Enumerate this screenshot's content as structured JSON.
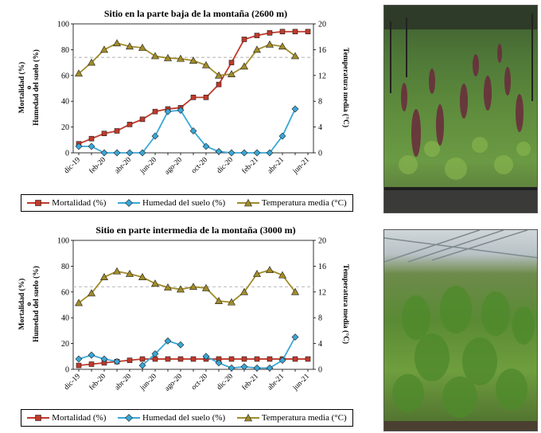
{
  "legend": {
    "mortality": "Mortalidad (%)",
    "humidity": "Humedad del suelo (%)",
    "temperature": "Temperatura media (°C)"
  },
  "colors": {
    "mortality": "#c0392b",
    "humidity": "#3aa7d6",
    "temperature": "#a08c2a",
    "reference_line": "#bfbfbf",
    "marker_edge": "#222222"
  },
  "icons": {
    "photo_top": "greenhouse-plants-photo",
    "photo_bottom": "greenhouse-seedlings-photo"
  },
  "chart_data": [
    {
      "type": "line",
      "title": "Sitio en la parte baja de la montaña (2600 m)",
      "ylabel_left_1": "Mortalidad (%)",
      "ylabel_left_sep": "o",
      "ylabel_left_2": "Humedad del suelo (%)",
      "ylabel_right": "Temperatura media (°C)",
      "xlabel": "",
      "x": [
        "dic-19",
        "ene-20",
        "feb-20",
        "mar-20",
        "abr-20",
        "may-20",
        "jun-20",
        "jul-20",
        "ago-20",
        "sep-20",
        "oct-20",
        "nov-20",
        "dic-20",
        "ene-21",
        "feb-21",
        "mar-21",
        "abr-21",
        "may-21",
        "jun-21"
      ],
      "x_tick_labels": [
        "dic-19",
        "feb-20",
        "abr-20",
        "jun-20",
        "ago-20",
        "oct-20",
        "dic-20",
        "feb-21",
        "abr-21",
        "jun-21"
      ],
      "ylim_left": [
        0,
        100
      ],
      "yticks_left": [
        0,
        20,
        40,
        60,
        80,
        100
      ],
      "ylim_right": [
        0,
        20
      ],
      "yticks_right": [
        0,
        4,
        8,
        12,
        16,
        20
      ],
      "reference_line_y": 74,
      "series": [
        {
          "name": "Mortalidad (%)",
          "axis": "left",
          "marker": "square",
          "values": [
            7,
            11,
            15,
            17,
            22,
            26,
            32,
            34,
            35,
            43,
            43,
            53,
            70,
            88,
            91,
            93,
            94,
            94,
            94
          ]
        },
        {
          "name": "Humedad del suelo (%)",
          "axis": "left",
          "marker": "diamond",
          "values": [
            5,
            5,
            0,
            0,
            0,
            0,
            13,
            32,
            33,
            17,
            5,
            1,
            0,
            0,
            0,
            0,
            13,
            34,
            null
          ]
        },
        {
          "name": "Temperatura media (°C)",
          "axis": "right",
          "marker": "triangle",
          "values": [
            12.3,
            14,
            16,
            17,
            16.5,
            16.3,
            15,
            14.7,
            14.6,
            14.3,
            13.6,
            12,
            12.2,
            13.4,
            16,
            16.8,
            16.5,
            15,
            null
          ]
        }
      ]
    },
    {
      "type": "line",
      "title": "Sitio en parte intermedia de la montaña (3000 m)",
      "ylabel_left_1": "Mortalidad (%)",
      "ylabel_left_sep": "o",
      "ylabel_left_2": "Humedad del suelo (%)",
      "ylabel_right": "Temperatura media (°C)",
      "xlabel": "",
      "x": [
        "dic-19",
        "ene-20",
        "feb-20",
        "mar-20",
        "abr-20",
        "may-20",
        "jun-20",
        "jul-20",
        "ago-20",
        "sep-20",
        "oct-20",
        "nov-20",
        "dic-20",
        "ene-21",
        "feb-21",
        "mar-21",
        "abr-21",
        "may-21",
        "jun-21"
      ],
      "x_tick_labels": [
        "dic-19",
        "feb-20",
        "abr-20",
        "jun-20",
        "ago-20",
        "oct-20",
        "dic-20",
        "feb-21",
        "abr-21",
        "jun-21"
      ],
      "ylim_left": [
        0,
        100
      ],
      "yticks_left": [
        0,
        20,
        40,
        60,
        80,
        100
      ],
      "ylim_right": [
        0,
        20
      ],
      "yticks_right": [
        0,
        4,
        8,
        12,
        16,
        20
      ],
      "reference_line_y": 64,
      "series": [
        {
          "name": "Mortalidad (%)",
          "axis": "left",
          "marker": "square",
          "values": [
            3,
            4,
            5,
            6,
            7,
            8,
            8,
            8,
            8,
            8,
            8,
            8,
            8,
            8,
            8,
            8,
            8,
            8,
            8
          ]
        },
        {
          "name": "Humedad del suelo (%)",
          "axis": "left",
          "marker": "diamond",
          "values": [
            8,
            11,
            8,
            6,
            null,
            3,
            12,
            22,
            19,
            null,
            10,
            5,
            1,
            2,
            1,
            1,
            7,
            25,
            null
          ]
        },
        {
          "name": "Temperatura media (°C)",
          "axis": "right",
          "marker": "triangle",
          "values": [
            10.3,
            11.8,
            14.3,
            15.2,
            14.8,
            14.3,
            13.3,
            12.7,
            12.4,
            12.8,
            12.6,
            10.6,
            10.4,
            12,
            14.8,
            15.4,
            14.6,
            12,
            null
          ]
        }
      ]
    }
  ]
}
